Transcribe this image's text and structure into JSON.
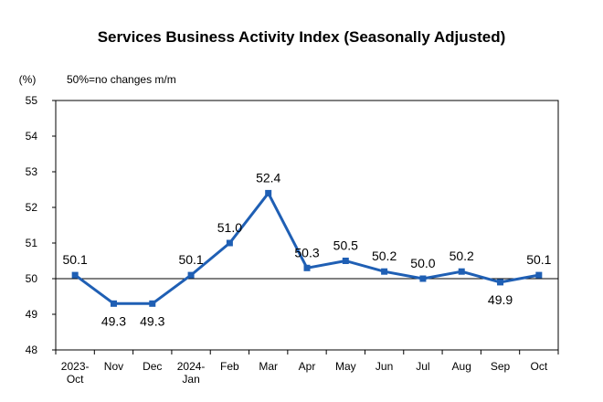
{
  "chart_data": {
    "type": "line",
    "title": "Services Business Activity Index (Seasonally Adjusted)",
    "unit_label": "(%)",
    "note": "50%=no changes m/m",
    "categories": [
      [
        "2023-",
        "Oct"
      ],
      [
        "Nov"
      ],
      [
        "Dec"
      ],
      [
        "2024-",
        "Jan"
      ],
      [
        "Feb"
      ],
      [
        "Mar"
      ],
      [
        "Apr"
      ],
      [
        "May"
      ],
      [
        "Jun"
      ],
      [
        "Jul"
      ],
      [
        "Aug"
      ],
      [
        "Sep"
      ],
      [
        "Oct"
      ]
    ],
    "values": [
      50.1,
      49.3,
      49.3,
      50.1,
      51.0,
      52.4,
      50.3,
      50.5,
      50.2,
      50.0,
      50.2,
      49.9,
      50.1
    ],
    "data_labels": [
      "50.1",
      "49.3",
      "49.3",
      "50.1",
      "51.0",
      "52.4",
      "50.3",
      "50.5",
      "50.2",
      "50.0",
      "50.2",
      "49.9",
      "50.1"
    ],
    "label_positions": [
      "above",
      "below",
      "below",
      "above",
      "above",
      "above",
      "above",
      "above",
      "above",
      "above",
      "above",
      "below",
      "above"
    ],
    "ylim": [
      48,
      55
    ],
    "yticks": [
      48,
      49,
      50,
      51,
      52,
      53,
      54,
      55
    ],
    "reference_line": 50,
    "grid": false,
    "series_color": "#1F5FB4",
    "reference_color": "#000000"
  }
}
